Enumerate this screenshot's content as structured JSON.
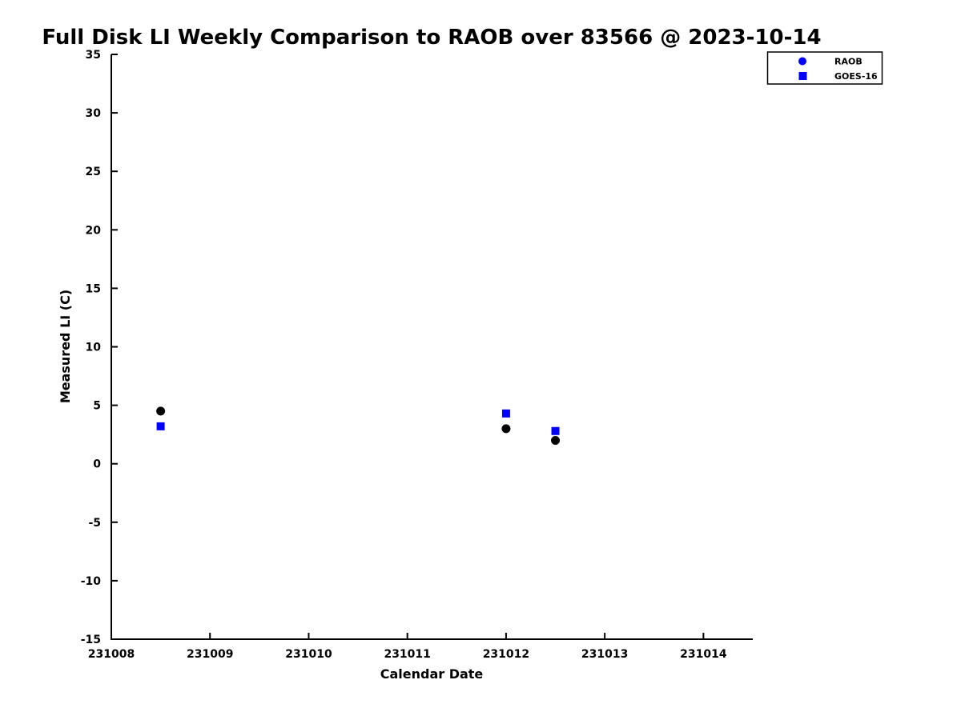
{
  "page": {
    "background": "#ffffff",
    "axis_color": "#000000",
    "text_color": "#000000"
  },
  "chart_data": {
    "type": "scatter",
    "title": "Full Disk LI Weekly Comparison to RAOB over 83566 @ 2023-10-14",
    "xlabel": "Calendar Date",
    "ylabel": "Measured LI (C)",
    "xlim": [
      231008,
      231014.5
    ],
    "ylim": [
      -15,
      35
    ],
    "xticks": [
      231008,
      231009,
      231010,
      231011,
      231012,
      231013,
      231014
    ],
    "yticks": [
      35,
      30,
      25,
      20,
      15,
      10,
      5,
      0,
      -5,
      -10,
      -15
    ],
    "grid": false,
    "legend_position": "top-right-outside-plot",
    "series": [
      {
        "name": "RAOB",
        "marker": "circle",
        "point_color": "#000000",
        "legend_marker_color": "#0000ff",
        "points": [
          {
            "x": 231008.5,
            "y": 4.5
          },
          {
            "x": 231012.0,
            "y": 3.0
          },
          {
            "x": 231012.5,
            "y": 2.0
          }
        ]
      },
      {
        "name": "GOES-16",
        "marker": "square",
        "point_color": "#0000ff",
        "legend_marker_color": "#0000ff",
        "points": [
          {
            "x": 231008.5,
            "y": 3.2
          },
          {
            "x": 231012.0,
            "y": 4.3
          },
          {
            "x": 231012.5,
            "y": 2.8
          }
        ]
      }
    ]
  }
}
